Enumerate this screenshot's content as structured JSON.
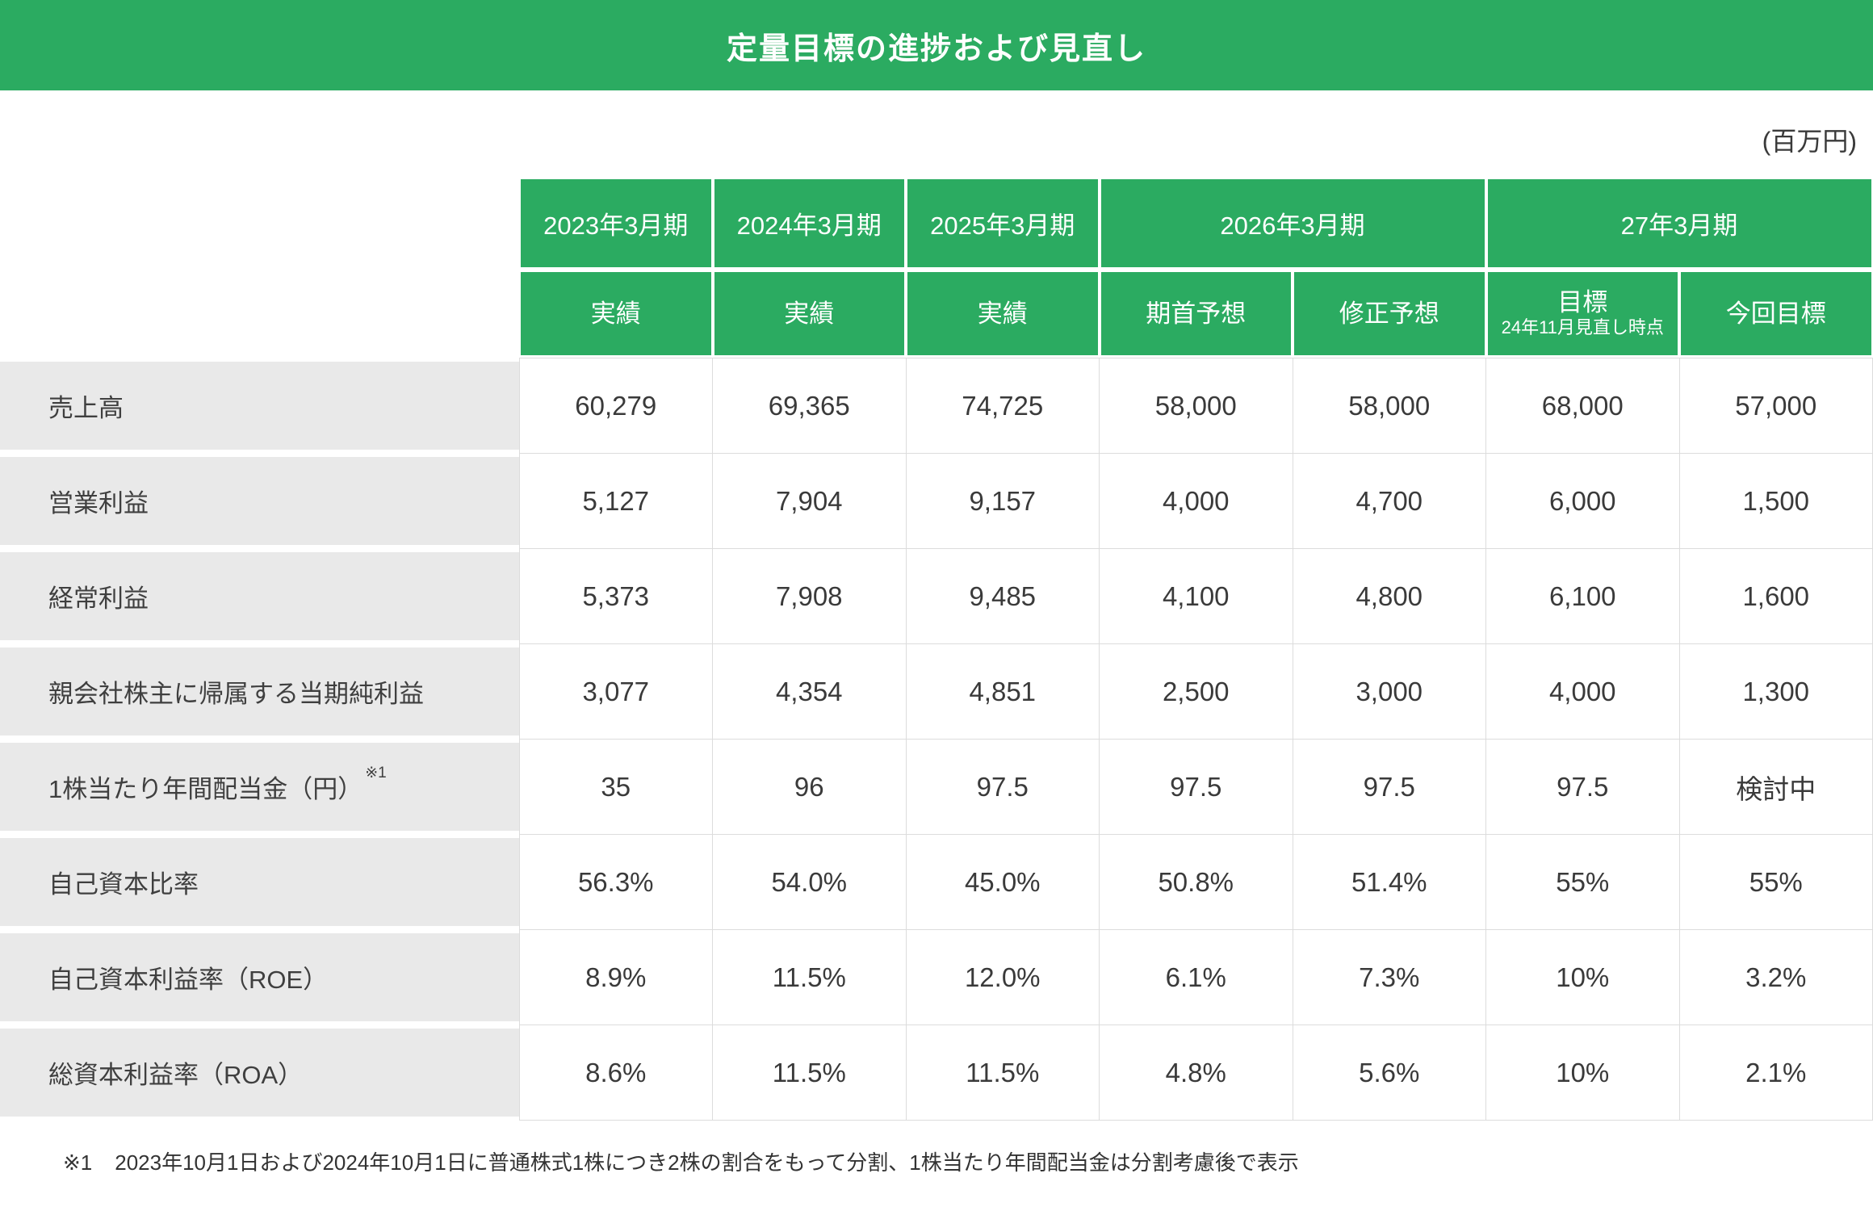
{
  "title": "定量目標の進捗および見直し",
  "unit_label": "(百万円)",
  "colors": {
    "accent_green": "#2bab61",
    "row_label_bg": "#e9e9e9",
    "grid_line": "#dcdcdc",
    "header_text": "#ffffff",
    "body_text": "#3a3a3a"
  },
  "table": {
    "year_headers": [
      {
        "label": "2023年3月期",
        "span": 1
      },
      {
        "label": "2024年3月期",
        "span": 1
      },
      {
        "label": "2025年3月期",
        "span": 1
      },
      {
        "label": "2026年3月期",
        "span": 2
      },
      {
        "label": "27年3月期",
        "span": 2
      }
    ],
    "sub_headers": [
      {
        "label": "実績"
      },
      {
        "label": "実績"
      },
      {
        "label": "実績"
      },
      {
        "label": "期首予想"
      },
      {
        "label": "修正予想"
      },
      {
        "label": "目標",
        "note": "24年11月見直し時点"
      },
      {
        "label": "今回目標"
      }
    ],
    "rows": [
      {
        "label": "売上高",
        "values": [
          "60,279",
          "69,365",
          "74,725",
          "58,000",
          "58,000",
          "68,000",
          "57,000"
        ]
      },
      {
        "label": "営業利益",
        "values": [
          "5,127",
          "7,904",
          "9,157",
          "4,000",
          "4,700",
          "6,000",
          "1,500"
        ]
      },
      {
        "label": "経常利益",
        "values": [
          "5,373",
          "7,908",
          "9,485",
          "4,100",
          "4,800",
          "6,100",
          "1,600"
        ]
      },
      {
        "label": "親会社株主に帰属する当期純利益",
        "values": [
          "3,077",
          "4,354",
          "4,851",
          "2,500",
          "3,000",
          "4,000",
          "1,300"
        ]
      },
      {
        "label": "1株当たり年間配当金（円）",
        "label_sup": "※1",
        "values": [
          "35",
          "96",
          "97.5",
          "97.5",
          "97.5",
          "97.5",
          "検討中"
        ]
      },
      {
        "label": "自己資本比率",
        "values": [
          "56.3%",
          "54.0%",
          "45.0%",
          "50.8%",
          "51.4%",
          "55%",
          "55%"
        ]
      },
      {
        "label": "自己資本利益率（ROE）",
        "values": [
          "8.9%",
          "11.5%",
          "12.0%",
          "6.1%",
          "7.3%",
          "10%",
          "3.2%"
        ]
      },
      {
        "label": "総資本利益率（ROA）",
        "values": [
          "8.6%",
          "11.5%",
          "11.5%",
          "4.8%",
          "5.6%",
          "10%",
          "2.1%"
        ]
      }
    ]
  },
  "footnote": {
    "marker": "※1",
    "text": "2023年10月1日および2024年10月1日に普通株式1株につき2株の割合をもって分割、1株当たり年間配当金は分割考慮後で表示"
  }
}
